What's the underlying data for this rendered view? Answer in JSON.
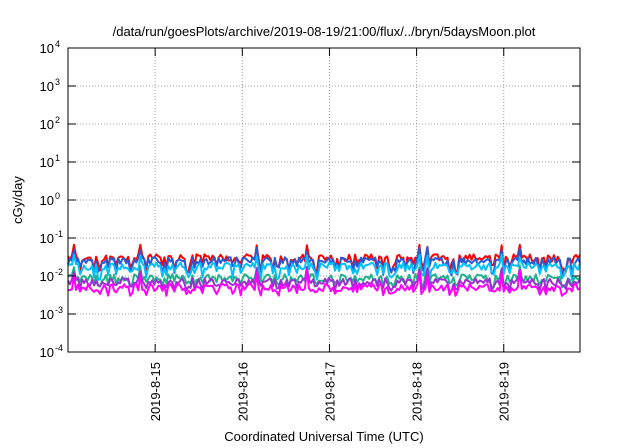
{
  "chart_data": {
    "type": "line",
    "title": "/data/run/goesPlots/archive/2019-08-19/21:00/flux/../bryn/5daysMoon.plot",
    "xlabel": "Coordinated Universal Time (UTC)",
    "ylabel": "cGy/day",
    "yscale": "log",
    "ylim": [
      0.0001,
      10000
    ],
    "y_ticks": [
      {
        "base": "10",
        "exp": "-4"
      },
      {
        "base": "10",
        "exp": "-3"
      },
      {
        "base": "10",
        "exp": "-2"
      },
      {
        "base": "10",
        "exp": "-1"
      },
      {
        "base": "10",
        "exp": "0"
      },
      {
        "base": "10",
        "exp": "1"
      },
      {
        "base": "10",
        "exp": "2"
      },
      {
        "base": "10",
        "exp": "3"
      },
      {
        "base": "10",
        "exp": "4"
      }
    ],
    "xlim": [
      "2019-08-14T00:00",
      "2019-08-19T21:00"
    ],
    "x_ticks": [
      "2019-8-15",
      "2019-8-16",
      "2019-8-17",
      "2019-8-18",
      "2019-8-19"
    ],
    "grid": true,
    "legend": "none",
    "series": [
      {
        "color": "#ff0000",
        "base": 0.03,
        "low": 0.012,
        "high": 0.07
      },
      {
        "color": "#2a5bd7",
        "base": 0.025,
        "low": 0.01,
        "high": 0.06
      },
      {
        "color": "#00c0ff",
        "base": 0.018,
        "low": 0.008,
        "high": 0.04
      },
      {
        "color": "#20b28a",
        "base": 0.009,
        "low": 0.005,
        "high": 0.02
      },
      {
        "color": "#9b30d0",
        "base": 0.007,
        "low": 0.004,
        "high": 0.018
      },
      {
        "color": "#ff00ff",
        "base": 0.005,
        "low": 0.003,
        "high": 0.015
      }
    ]
  }
}
